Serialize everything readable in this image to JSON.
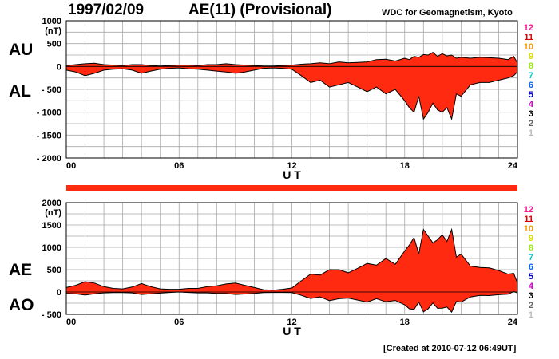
{
  "header": {
    "date": "1997/02/09",
    "title": "AE(11) (Provisional)",
    "source": "WDC for Geomagnetism, Kyoto"
  },
  "footer": {
    "created": "[Created at 2010-07-12 06:49UT]"
  },
  "station_key": {
    "labels": [
      "12",
      "11",
      "10",
      "9",
      "8",
      "7",
      "6",
      "5",
      "4",
      "3",
      "2",
      "1"
    ],
    "colors": [
      "#ff1493",
      "#dd0000",
      "#ff9900",
      "#dddd00",
      "#99ee00",
      "#00cccc",
      "#0066ff",
      "#0000cc",
      "#cc00cc",
      "#000000",
      "#666666",
      "#bbbbbb"
    ]
  },
  "colors": {
    "fill": "#ff2a10",
    "outline": "#000000",
    "grid": "#a8a8a8",
    "availability_bar": "#ff2a10"
  },
  "chart_data": [
    {
      "type": "area",
      "panel": "AU/AL",
      "labels": [
        "AU",
        "AL"
      ],
      "unit_label": "(nT)",
      "xlabel": "U T",
      "x_ticks": [
        "00",
        "06",
        "12",
        "18",
        "24"
      ],
      "xlim": [
        0,
        24
      ],
      "ylim": [
        -2000,
        1000
      ],
      "y_ticks": [
        "1000",
        "500",
        "0",
        "- 500",
        "- 1000",
        "- 1500",
        "- 2000"
      ],
      "grid": true,
      "series": [
        {
          "name": "AU",
          "x": [
            0,
            0.5,
            1,
            1.5,
            2,
            2.5,
            3,
            3.5,
            4,
            4.5,
            5,
            5.5,
            6,
            6.5,
            7,
            7.5,
            8,
            8.5,
            9,
            9.5,
            10,
            10.5,
            11,
            11.5,
            12,
            12.5,
            13,
            13.5,
            14,
            14.5,
            15,
            15.5,
            16,
            16.5,
            17,
            17.5,
            18,
            18.25,
            18.5,
            18.75,
            19,
            19.25,
            19.5,
            19.75,
            20,
            20.25,
            20.5,
            20.75,
            21,
            21.5,
            22,
            22.5,
            23,
            23.5,
            23.8,
            24
          ],
          "values": [
            20,
            40,
            60,
            70,
            40,
            30,
            20,
            40,
            40,
            20,
            10,
            20,
            30,
            30,
            20,
            40,
            40,
            60,
            40,
            30,
            20,
            10,
            10,
            20,
            30,
            50,
            60,
            80,
            60,
            100,
            80,
            90,
            100,
            150,
            160,
            120,
            180,
            150,
            220,
            200,
            260,
            250,
            310,
            220,
            280,
            230,
            250,
            180,
            200,
            180,
            200,
            190,
            180,
            150,
            220,
            80
          ]
        },
        {
          "name": "AL",
          "x": [
            0,
            0.5,
            1,
            1.5,
            2,
            2.5,
            3,
            3.5,
            4,
            4.5,
            5,
            5.5,
            6,
            6.5,
            7,
            7.5,
            8,
            8.5,
            9,
            9.5,
            10,
            10.5,
            11,
            11.5,
            12,
            12.5,
            13,
            13.5,
            14,
            14.5,
            15,
            15.5,
            16,
            16.5,
            17,
            17.5,
            18,
            18.25,
            18.5,
            18.75,
            19,
            19.25,
            19.5,
            19.75,
            20,
            20.25,
            20.5,
            20.75,
            21,
            21.5,
            22,
            22.5,
            23,
            23.5,
            23.8,
            24
          ],
          "values": [
            -80,
            -120,
            -200,
            -150,
            -80,
            -60,
            -50,
            -80,
            -150,
            -100,
            -60,
            -40,
            -30,
            -50,
            -60,
            -80,
            -100,
            -120,
            -150,
            -120,
            -80,
            -40,
            -30,
            -40,
            -60,
            -200,
            -350,
            -300,
            -450,
            -400,
            -350,
            -450,
            -550,
            -450,
            -600,
            -500,
            -750,
            -900,
            -1000,
            -650,
            -1150,
            -1000,
            -800,
            -950,
            -1000,
            -900,
            -1150,
            -600,
            -650,
            -400,
            -350,
            -350,
            -300,
            -250,
            -200,
            -120
          ]
        }
      ]
    },
    {
      "type": "area",
      "panel": "AE/AO",
      "labels": [
        "AE",
        "AO"
      ],
      "unit_label": "(nT)",
      "xlabel": "U T",
      "x_ticks": [
        "00",
        "06",
        "12",
        "18",
        "24"
      ],
      "xlim": [
        0,
        24
      ],
      "ylim": [
        -500,
        2000
      ],
      "y_ticks": [
        "2000",
        "1500",
        "1000",
        "500",
        "0",
        "- 500"
      ],
      "grid": true,
      "series": [
        {
          "name": "AE",
          "x": [
            0,
            0.5,
            1,
            1.5,
            2,
            2.5,
            3,
            3.5,
            4,
            4.5,
            5,
            5.5,
            6,
            6.5,
            7,
            7.5,
            8,
            8.5,
            9,
            9.5,
            10,
            10.5,
            11,
            11.5,
            12,
            12.5,
            13,
            13.5,
            14,
            14.5,
            15,
            15.5,
            16,
            16.5,
            17,
            17.5,
            18,
            18.25,
            18.5,
            18.75,
            19,
            19.25,
            19.5,
            19.75,
            20,
            20.25,
            20.5,
            20.75,
            21,
            21.5,
            22,
            22.5,
            23,
            23.5,
            23.8,
            24
          ],
          "values": [
            100,
            150,
            230,
            200,
            120,
            80,
            70,
            110,
            190,
            120,
            70,
            60,
            60,
            80,
            80,
            120,
            140,
            180,
            200,
            150,
            100,
            50,
            40,
            60,
            90,
            250,
            400,
            380,
            500,
            500,
            430,
            530,
            640,
            600,
            750,
            620,
            920,
            1050,
            1220,
            850,
            1400,
            1250,
            1100,
            1170,
            1280,
            1130,
            1400,
            780,
            850,
            580,
            550,
            540,
            480,
            400,
            420,
            200
          ]
        },
        {
          "name": "AO",
          "x": [
            0,
            0.5,
            1,
            1.5,
            2,
            2.5,
            3,
            3.5,
            4,
            4.5,
            5,
            5.5,
            6,
            6.5,
            7,
            7.5,
            8,
            8.5,
            9,
            9.5,
            10,
            10.5,
            11,
            11.5,
            12,
            12.5,
            13,
            13.5,
            14,
            14.5,
            15,
            15.5,
            16,
            16.5,
            17,
            17.5,
            18,
            18.25,
            18.5,
            18.75,
            19,
            19.25,
            19.5,
            19.75,
            20,
            20.25,
            20.5,
            20.75,
            21,
            21.5,
            22,
            22.5,
            23,
            23.5,
            23.8,
            24
          ],
          "values": [
            -30,
            -40,
            -70,
            -40,
            -20,
            -15,
            -15,
            -20,
            -55,
            -40,
            -25,
            -10,
            0,
            -10,
            -20,
            -20,
            -30,
            -30,
            -55,
            -45,
            -30,
            -15,
            -10,
            -10,
            -15,
            -75,
            -145,
            -110,
            -195,
            -150,
            -135,
            -180,
            -225,
            -150,
            -220,
            -190,
            -285,
            -375,
            -390,
            -225,
            -445,
            -375,
            -245,
            -365,
            -360,
            -335,
            -450,
            -210,
            -225,
            -110,
            -75,
            -80,
            -60,
            -50,
            10,
            -20
          ]
        }
      ]
    }
  ]
}
